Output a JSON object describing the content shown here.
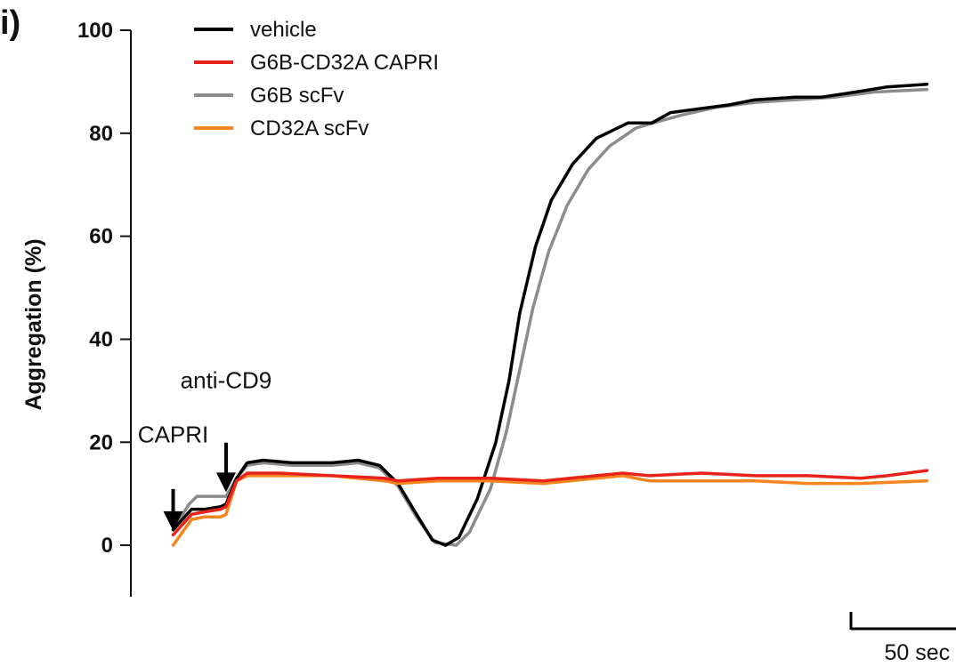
{
  "panel_label": "i)",
  "chart_data": {
    "type": "line",
    "title": "",
    "xlabel": "",
    "ylabel": "Aggregation (%)",
    "ylim": [
      -10,
      100
    ],
    "yticks": [
      0,
      20,
      40,
      60,
      80,
      100
    ],
    "xlim": [
      -16,
      296
    ],
    "x_unit": "sec",
    "grid": false,
    "legend_position": "top-left",
    "annotations": [
      {
        "label": "CAPRI",
        "x": 0
      },
      {
        "label": "anti-CD9",
        "x": 20
      }
    ],
    "scale_bar": {
      "length": 50,
      "label": "50 sec"
    },
    "series": [
      {
        "name": "vehicle",
        "color": "#000000",
        "points": [
          [
            0,
            3
          ],
          [
            7,
            7
          ],
          [
            12,
            7
          ],
          [
            18,
            7.5
          ],
          [
            20,
            8
          ],
          [
            24,
            13
          ],
          [
            28,
            16
          ],
          [
            34,
            16.5
          ],
          [
            45,
            16
          ],
          [
            60,
            16
          ],
          [
            70,
            16.5
          ],
          [
            78,
            15.5
          ],
          [
            85,
            12
          ],
          [
            92,
            6
          ],
          [
            98,
            1
          ],
          [
            103,
            0
          ],
          [
            108,
            1.5
          ],
          [
            115,
            9
          ],
          [
            122,
            20
          ],
          [
            127,
            32
          ],
          [
            131,
            45
          ],
          [
            137,
            58
          ],
          [
            143,
            67
          ],
          [
            151,
            74
          ],
          [
            160,
            79
          ],
          [
            172,
            82
          ],
          [
            181,
            82
          ],
          [
            188,
            84
          ],
          [
            195,
            84.5
          ],
          [
            210,
            85.5
          ],
          [
            220,
            86.5
          ],
          [
            235,
            87
          ],
          [
            245,
            87
          ],
          [
            258,
            88
          ],
          [
            270,
            89
          ],
          [
            285,
            89.5
          ]
        ]
      },
      {
        "name": "G6B-CD32A CAPRI",
        "color": "#e8231b",
        "points": [
          [
            0,
            2
          ],
          [
            7,
            6
          ],
          [
            12,
            6.5
          ],
          [
            18,
            7
          ],
          [
            20,
            7.5
          ],
          [
            24,
            12.5
          ],
          [
            28,
            14
          ],
          [
            40,
            14
          ],
          [
            60,
            13.5
          ],
          [
            80,
            13
          ],
          [
            85,
            12.5
          ],
          [
            100,
            13
          ],
          [
            120,
            13
          ],
          [
            140,
            12.5
          ],
          [
            160,
            13.5
          ],
          [
            170,
            14
          ],
          [
            180,
            13.5
          ],
          [
            200,
            14
          ],
          [
            220,
            13.5
          ],
          [
            240,
            13.5
          ],
          [
            260,
            13
          ],
          [
            270,
            13.5
          ],
          [
            285,
            14.5
          ]
        ]
      },
      {
        "name": "G6B scFv",
        "color": "#8c8c8c",
        "points": [
          [
            0,
            3
          ],
          [
            6,
            8
          ],
          [
            9,
            9.5
          ],
          [
            14,
            9.5
          ],
          [
            18,
            9.5
          ],
          [
            20,
            9.5
          ],
          [
            24,
            13
          ],
          [
            28,
            15.5
          ],
          [
            34,
            16
          ],
          [
            45,
            15.5
          ],
          [
            60,
            15.5
          ],
          [
            70,
            16
          ],
          [
            78,
            15
          ],
          [
            85,
            11.5
          ],
          [
            92,
            5.5
          ],
          [
            99,
            0.5
          ],
          [
            107,
            0
          ],
          [
            112,
            2.5
          ],
          [
            120,
            11
          ],
          [
            126,
            22
          ],
          [
            131,
            34
          ],
          [
            136,
            46
          ],
          [
            142,
            57
          ],
          [
            149,
            66
          ],
          [
            157,
            73
          ],
          [
            165,
            77.5
          ],
          [
            175,
            81
          ],
          [
            185,
            82.5
          ],
          [
            192,
            83.5
          ],
          [
            205,
            85
          ],
          [
            220,
            86
          ],
          [
            235,
            86.5
          ],
          [
            250,
            87
          ],
          [
            265,
            88
          ],
          [
            285,
            88.5
          ]
        ]
      },
      {
        "name": "CD32A scFv",
        "color": "#f5851f",
        "points": [
          [
            0,
            0
          ],
          [
            7,
            5
          ],
          [
            12,
            5.5
          ],
          [
            18,
            5.5
          ],
          [
            20,
            6
          ],
          [
            24,
            12.5
          ],
          [
            28,
            13.5
          ],
          [
            40,
            13.5
          ],
          [
            60,
            13.5
          ],
          [
            80,
            12.5
          ],
          [
            85,
            12
          ],
          [
            100,
            12.5
          ],
          [
            120,
            12.5
          ],
          [
            140,
            12
          ],
          [
            160,
            13
          ],
          [
            170,
            13.5
          ],
          [
            180,
            12.5
          ],
          [
            200,
            12.5
          ],
          [
            220,
            12.5
          ],
          [
            240,
            12
          ],
          [
            260,
            12
          ],
          [
            285,
            12.5
          ]
        ]
      }
    ]
  }
}
